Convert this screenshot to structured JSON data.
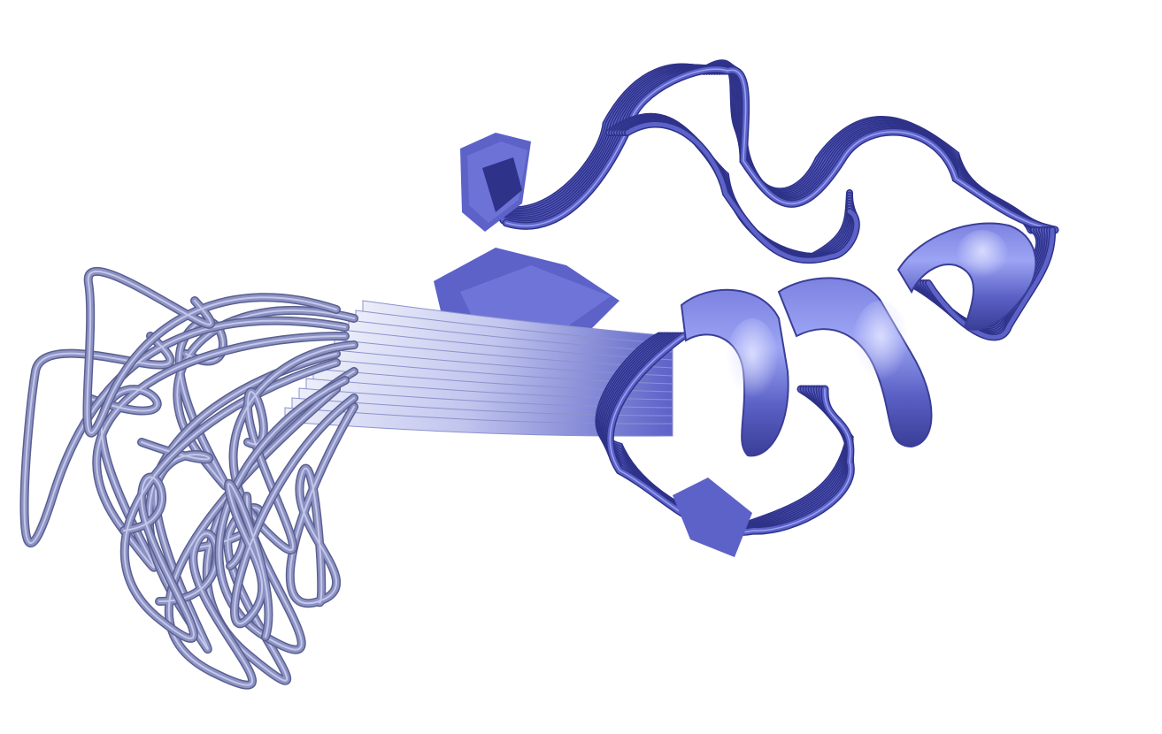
{
  "scene": {
    "background_color": "#ffffff",
    "subject": "protein-structure-ensemble",
    "representation": "cartoon",
    "colors": {
      "ordered_domain": "#5c62c8",
      "ordered_highlight": "#9aa2f2",
      "ordered_shadow": "#2e3288",
      "tail_loops": "#8c92c4",
      "tail_highlight": "#c4c8e8",
      "sheet_light": "#e6e8f8"
    },
    "elements": {
      "helix_turns": 3,
      "strand_bundle": 1,
      "loop_bundles": 2,
      "disordered_tail": 1
    }
  }
}
